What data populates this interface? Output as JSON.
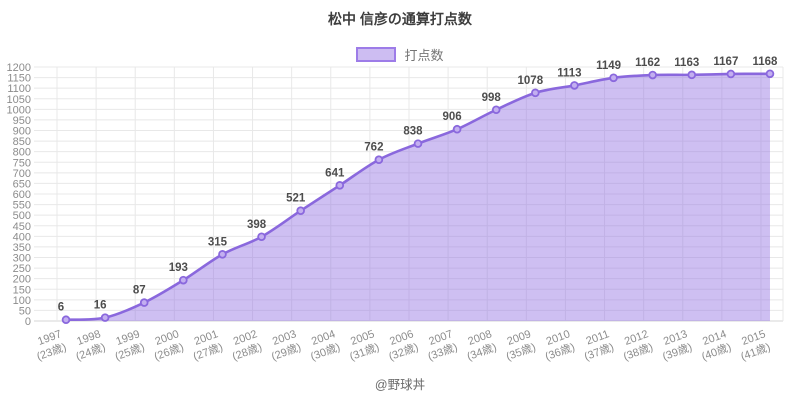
{
  "title": "松中 信彦の通算打点数",
  "legend": {
    "items": [
      {
        "label": "打点数"
      }
    ]
  },
  "credit": "@野球丼",
  "chart_data": {
    "type": "area",
    "title": "松中 信彦の通算打点数",
    "categories": [
      "1997",
      "1998",
      "1999",
      "2000",
      "2001",
      "2002",
      "2003",
      "2004",
      "2005",
      "2006",
      "2007",
      "2008",
      "2009",
      "2010",
      "2011",
      "2012",
      "2013",
      "2014",
      "2015"
    ],
    "category_sublabels": [
      "(23歳)",
      "(24歳)",
      "(25歳)",
      "(26歳)",
      "(27歳)",
      "(28歳)",
      "(29歳)",
      "(30歳)",
      "(31歳)",
      "(32歳)",
      "(33歳)",
      "(34歳)",
      "(35歳)",
      "(36歳)",
      "(37歳)",
      "(38歳)",
      "(39歳)",
      "(40歳)",
      "(41歳)"
    ],
    "series": [
      {
        "name": "打点数",
        "values": [
          6,
          16,
          87,
          193,
          315,
          398,
          521,
          641,
          762,
          838,
          906,
          998,
          1078,
          1113,
          1149,
          1162,
          1163,
          1167,
          1168
        ]
      }
    ],
    "xlabel": "",
    "ylabel": "",
    "ylim": [
      0,
      1200
    ],
    "ytick_step": 50,
    "grid": true,
    "legend_position": "top",
    "point_labels": true,
    "colors": {
      "line": "#8a68dd",
      "area_fill": "rgba(147,113,226,0.45)",
      "marker_fill": "#c3aff0",
      "grid": "#e8e8e8",
      "axis": "#d4d4d4",
      "tick_label": "#8c8c8c",
      "value_label": "#4d4d4d",
      "title": "#3d3d3d",
      "legend_swatch_fill": "#cdbdf2",
      "legend_swatch_border": "#9d7ce8",
      "legend_label": "#757575",
      "credit": "#696969"
    }
  }
}
